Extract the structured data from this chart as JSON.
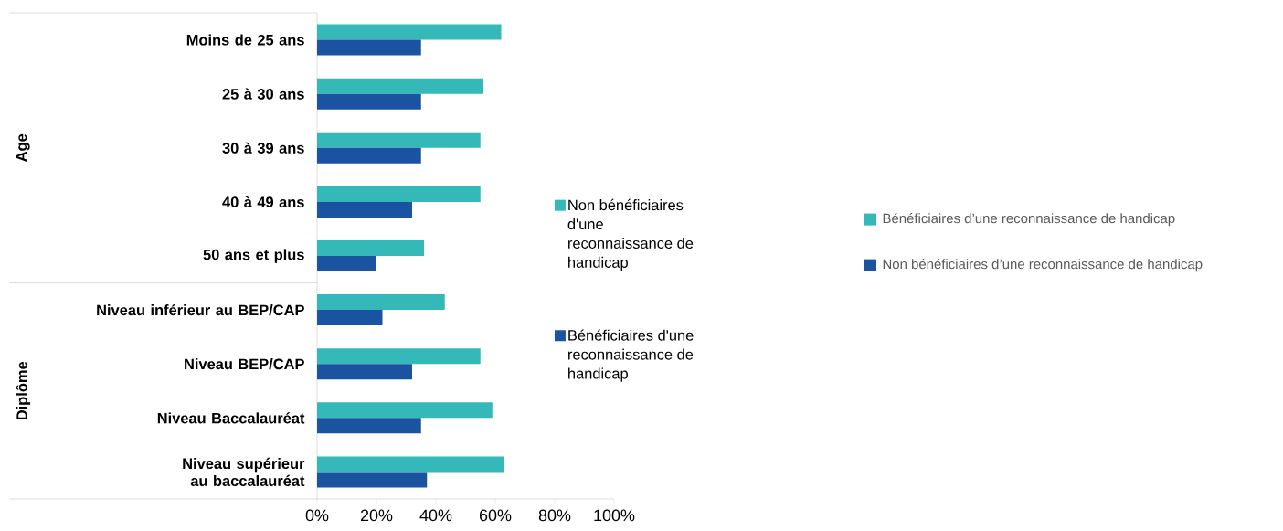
{
  "chart_data": {
    "type": "bar",
    "orientation": "horizontal",
    "categories": [
      "Moins de 25 ans",
      "25 à 30 ans",
      "30 à 39 ans",
      "40 à 49 ans",
      "50 ans et plus",
      "Niveau inférieur au BEP/CAP",
      "Niveau BEP/CAP",
      "Niveau Baccalauréat",
      "Niveau supérieur au baccalauréat"
    ],
    "series": [
      {
        "name": "Non bénéficiaires d'une reconnaissance de handicap",
        "color": "#35b8b8",
        "values": [
          62,
          56,
          55,
          55,
          36,
          43,
          55,
          59,
          63
        ]
      },
      {
        "name": "Bénéficiaires d'une reconnaissance de handicap",
        "color": "#1a53a0",
        "values": [
          35,
          35,
          35,
          32,
          20,
          22,
          32,
          35,
          37
        ]
      }
    ],
    "xlim": [
      0,
      100
    ],
    "xticks": [
      {
        "value": 0,
        "label": "0%"
      },
      {
        "value": 20,
        "label": "20%"
      },
      {
        "value": 40,
        "label": "40%"
      },
      {
        "value": 60,
        "label": "60%"
      },
      {
        "value": 80,
        "label": "80%"
      },
      {
        "value": 100,
        "label": "100%"
      }
    ],
    "legend": "right",
    "annotations": [
      "Age",
      "Diplôme",
      "Bénéficiaires d’une reconnaissance de handicap",
      "Non bénéficiaires d’une reconnaissance de handicap"
    ]
  }
}
